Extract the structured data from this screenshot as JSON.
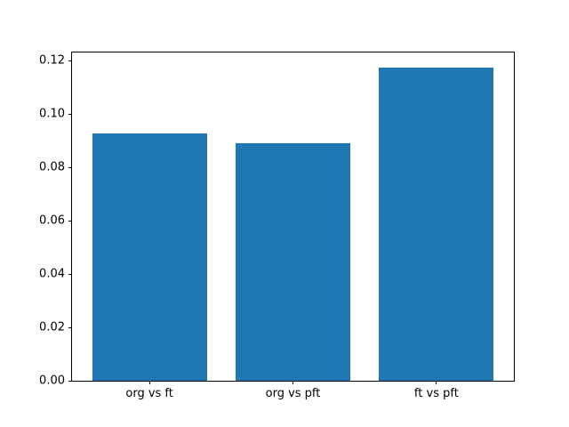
{
  "chart_data": {
    "type": "bar",
    "title": "",
    "xlabel": "",
    "ylabel": "",
    "categories": [
      "org vs ft",
      "org vs pft",
      "ft vs pft"
    ],
    "values": [
      0.0926,
      0.089,
      0.1174
    ],
    "ylim": [
      0,
      0.123
    ],
    "yticks": [
      0,
      0.02,
      0.04,
      0.06,
      0.08,
      0.1,
      0.12
    ],
    "ytick_labels": [
      "0.00",
      "0.02",
      "0.04",
      "0.06",
      "0.08",
      "0.10",
      "0.12"
    ],
    "bar_color": "#1f77b4",
    "bar_width_fraction": 0.8,
    "grid": false,
    "legend_position": "none",
    "colors": {
      "background": "#ffffff",
      "spine": "#000000",
      "text": "#000000"
    }
  }
}
